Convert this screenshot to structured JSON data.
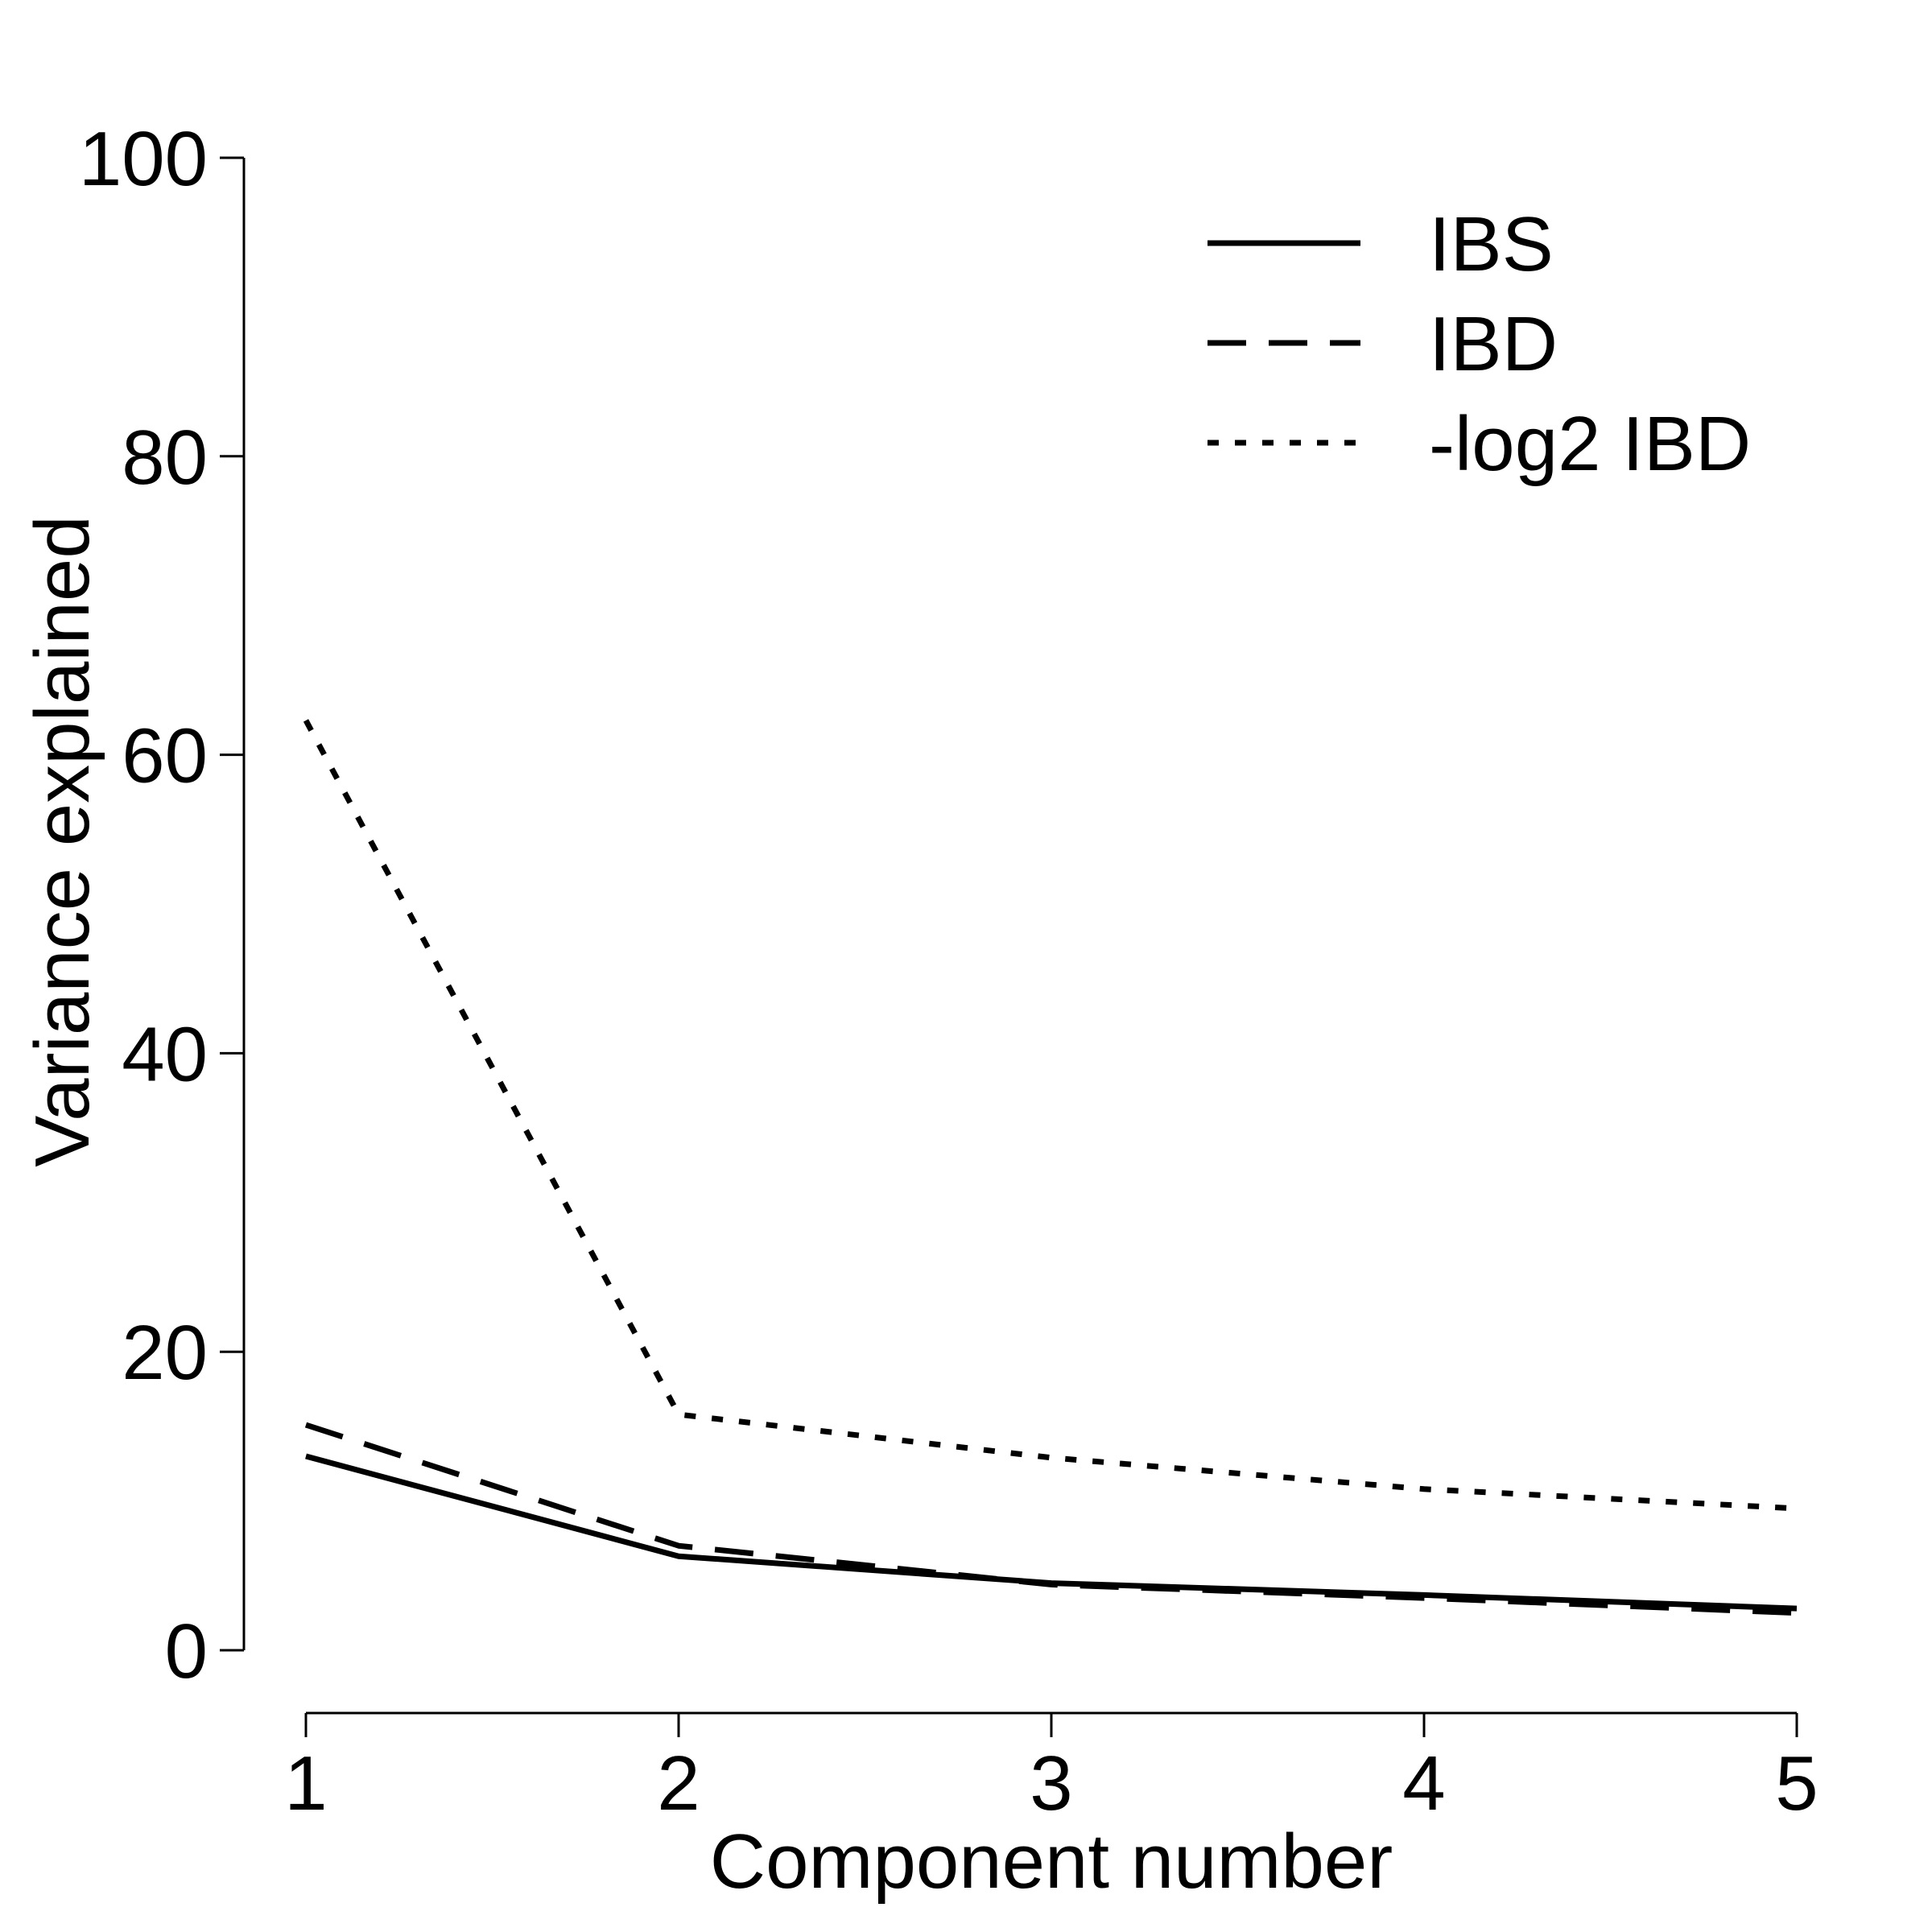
{
  "chart_data": {
    "type": "line",
    "xlabel": "Component number",
    "ylabel": "Variance explained",
    "x": [
      1,
      2,
      3,
      4,
      5
    ],
    "xlim": [
      1,
      5
    ],
    "ylim": [
      0,
      100
    ],
    "xticks": [
      1,
      2,
      3,
      4,
      5
    ],
    "yticks": [
      0,
      20,
      40,
      60,
      80,
      100
    ],
    "grid": false,
    "legend_position": "top-right",
    "series": [
      {
        "name": "IBS",
        "style": "solid",
        "color": "#000000",
        "values": [
          13.0,
          6.3,
          4.5,
          3.7,
          2.8
        ]
      },
      {
        "name": "IBD",
        "style": "dashed",
        "color": "#000000",
        "values": [
          15.1,
          7.0,
          4.4,
          3.5,
          2.5
        ]
      },
      {
        "name": "-log2 IBD",
        "style": "dotted",
        "color": "#000000",
        "values": [
          62.3,
          15.8,
          12.9,
          10.8,
          9.5
        ]
      }
    ]
  }
}
